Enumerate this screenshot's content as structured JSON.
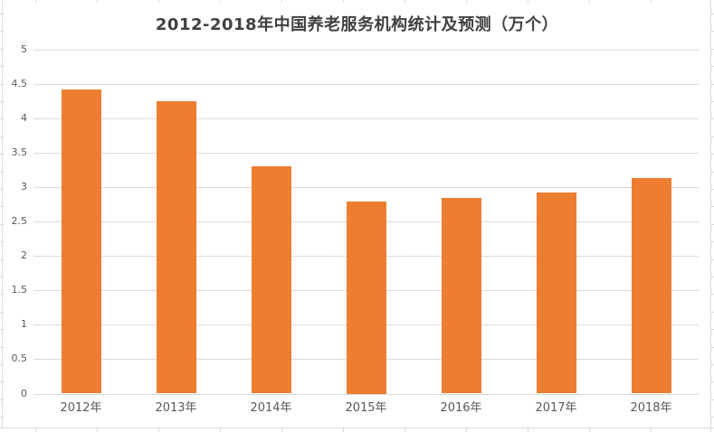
{
  "chart_data": {
    "type": "bar",
    "title": "2012-2018年中国养老服务机构统计及预测（万个）",
    "categories": [
      "2012年",
      "2013年",
      "2014年",
      "2015年",
      "2016年",
      "2017年",
      "2018年"
    ],
    "values": [
      4.42,
      4.25,
      3.3,
      2.79,
      2.84,
      2.92,
      3.13
    ],
    "ylabel": "",
    "xlabel": "",
    "ylim": [
      0,
      5
    ],
    "ytick_step": 0.5,
    "ytick_labels": [
      "0",
      "0.5",
      "1",
      "1.5",
      "2",
      "2.5",
      "3",
      "3.5",
      "4",
      "4.5",
      "5"
    ],
    "grid": true,
    "legend": "none",
    "bar_color": "#ED7D31",
    "gridline_color": "#D9D9D9",
    "axis_text_color": "#595959",
    "title_color": "#404040",
    "background": "#FFFFFF"
  }
}
